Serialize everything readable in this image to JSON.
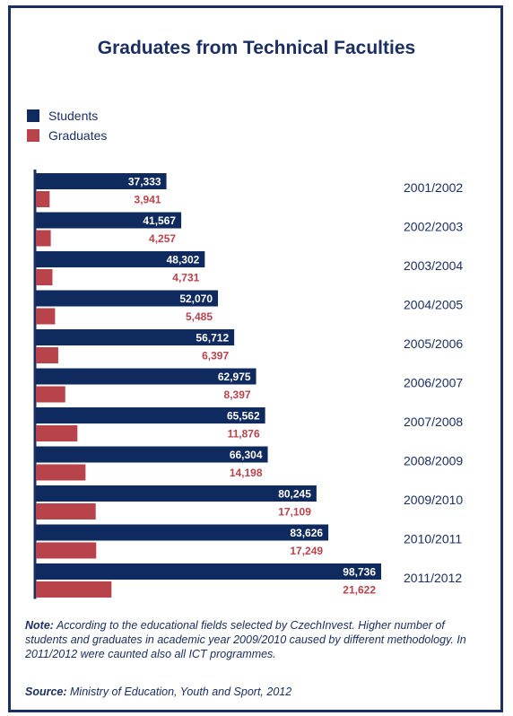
{
  "colors": {
    "students": "#0f2a5e",
    "graduates": "#b8434b",
    "text": "#1b2f63",
    "frame": "#1b2f63"
  },
  "chart_data": {
    "type": "bar",
    "orientation": "horizontal",
    "title": "Graduates from Technical Faculties",
    "categories": [
      "2001/2002",
      "2002/2003",
      "2003/2004",
      "2004/2005",
      "2005/2006",
      "2006/2007",
      "2007/2008",
      "2008/2009",
      "2009/2010",
      "2010/2011",
      "2011/2012"
    ],
    "series": [
      {
        "name": "Students",
        "color": "#0f2a5e",
        "values": [
          37333,
          41567,
          48302,
          52070,
          56712,
          62975,
          65562,
          66304,
          80245,
          83626,
          98736
        ],
        "labels": [
          "37,333",
          "41,567",
          "48,302",
          "52,070",
          "56,712",
          "62,975",
          "65,562",
          "66,304",
          "80,245",
          "83,626",
          "98,736"
        ]
      },
      {
        "name": "Graduates",
        "color": "#b8434b",
        "values": [
          3941,
          4257,
          4731,
          5485,
          6397,
          8397,
          11876,
          14198,
          17109,
          17249,
          21622
        ],
        "labels": [
          "3,941",
          "4,257",
          "4,731",
          "5,485",
          "6,397",
          "8,397",
          "11,876",
          "14,198",
          "17,109",
          "17,249",
          "21,622"
        ]
      }
    ],
    "legend": "top-left",
    "grid": false
  },
  "note": {
    "label": "Note:",
    "text": " According to the educational fields selected by CzechInvest. Higher number of students and graduates in academic year 2009/2010 caused by different methodology. In 2011/2012 were caunted also all ICT programmes."
  },
  "source": {
    "label": "Source:",
    "text": " Ministry of Education, Youth and Sport, 2012"
  }
}
